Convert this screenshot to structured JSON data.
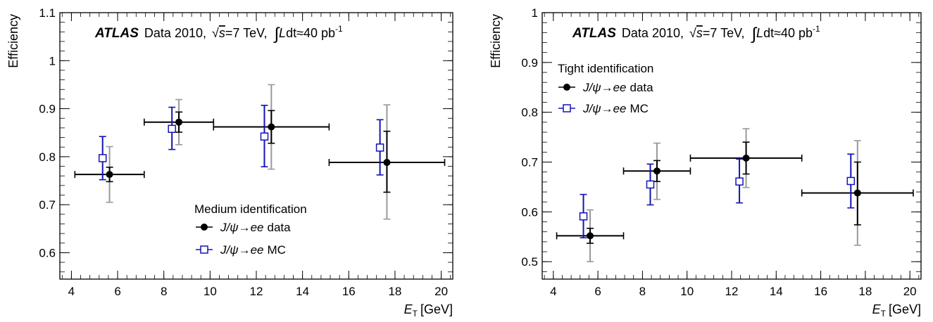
{
  "chart_data": [
    {
      "type": "scatter",
      "panel": "left",
      "header": {
        "experiment": "ATLAS",
        "data_label": "Data 2010,",
        "sqrt_s": "=7 TeV,",
        "luminosity": "dt≈40 pb"
      },
      "ylabel": "Efficiency",
      "xlabel": "[GeV]",
      "xlabel_symbol": "E",
      "xlabel_sub": "T",
      "xlim": [
        3.5,
        20.5
      ],
      "ylim": [
        0.545,
        1.1
      ],
      "xticks": [
        4,
        6,
        8,
        10,
        12,
        14,
        16,
        18,
        20
      ],
      "xtick_labels": [
        "4",
        "6",
        "8",
        "10",
        "12",
        "14",
        "16",
        "18",
        "20"
      ],
      "yticks": [
        0.6,
        0.7,
        0.8,
        0.9,
        1.0,
        1.1
      ],
      "ytick_labels": [
        "0.6",
        "0.7",
        "0.8",
        "0.9",
        "1",
        "1.1"
      ],
      "legend_title": "Medium identification",
      "legend_position": "bottom-right",
      "series": [
        {
          "name": "data",
          "name_prefix": "J/ψ→ee",
          "marker": "filled-circle",
          "color": "#000000",
          "syst_color": "#999999",
          "x": [
            5.65,
            8.65,
            12.65,
            17.65
          ],
          "xerr_low": [
            1.5,
            1.5,
            2.5,
            2.5
          ],
          "xerr_high": [
            1.5,
            1.5,
            2.5,
            2.5
          ],
          "y": [
            0.763,
            0.872,
            0.862,
            0.788
          ],
          "stat_low": [
            0.015,
            0.021,
            0.034,
            0.062
          ],
          "stat_high": [
            0.015,
            0.021,
            0.034,
            0.065
          ],
          "tot_low": [
            0.058,
            0.047,
            0.088,
            0.118
          ],
          "tot_high": [
            0.058,
            0.047,
            0.088,
            0.12
          ]
        },
        {
          "name": "MC",
          "name_prefix": "J/ψ→ee",
          "marker": "open-square",
          "color": "#1414b4",
          "x": [
            5.35,
            8.35,
            12.35,
            17.35
          ],
          "y": [
            0.797,
            0.858,
            0.842,
            0.819
          ],
          "err_low": [
            0.045,
            0.043,
            0.063,
            0.057
          ],
          "err_high": [
            0.045,
            0.045,
            0.065,
            0.058
          ]
        }
      ]
    },
    {
      "type": "scatter",
      "panel": "right",
      "header": {
        "experiment": "ATLAS",
        "data_label": "Data 2010,",
        "sqrt_s": "=7 TeV,",
        "luminosity": "dt≈40 pb"
      },
      "ylabel": "Efficiency",
      "xlabel": "[GeV]",
      "xlabel_symbol": "E",
      "xlabel_sub": "T",
      "xlim": [
        3.5,
        20.5
      ],
      "ylim": [
        0.465,
        1.0
      ],
      "xticks": [
        4,
        6,
        8,
        10,
        12,
        14,
        16,
        18,
        20
      ],
      "xtick_labels": [
        "4",
        "6",
        "8",
        "10",
        "12",
        "14",
        "16",
        "18",
        "20"
      ],
      "yticks": [
        0.5,
        0.6,
        0.7,
        0.8,
        0.9,
        1.0
      ],
      "ytick_labels": [
        "0.5",
        "0.6",
        "0.7",
        "0.8",
        "0.9",
        "1"
      ],
      "legend_title": "Tight identification",
      "legend_position": "top-left",
      "series": [
        {
          "name": "data",
          "name_prefix": "J/ψ→ee",
          "marker": "filled-circle",
          "color": "#000000",
          "syst_color": "#999999",
          "x": [
            5.65,
            8.65,
            12.65,
            17.65
          ],
          "xerr_low": [
            1.5,
            1.5,
            2.5,
            2.5
          ],
          "xerr_high": [
            1.5,
            1.5,
            2.5,
            2.5
          ],
          "y": [
            0.552,
            0.682,
            0.708,
            0.638
          ],
          "stat_low": [
            0.015,
            0.021,
            0.032,
            0.064
          ],
          "stat_high": [
            0.015,
            0.021,
            0.032,
            0.062
          ],
          "tot_low": [
            0.052,
            0.057,
            0.059,
            0.105
          ],
          "tot_high": [
            0.052,
            0.056,
            0.059,
            0.105
          ]
        },
        {
          "name": "MC",
          "name_prefix": "J/ψ→ee",
          "marker": "open-square",
          "color": "#1414b4",
          "x": [
            5.35,
            8.35,
            12.35,
            17.35
          ],
          "y": [
            0.591,
            0.655,
            0.661,
            0.662
          ],
          "err_low": [
            0.043,
            0.041,
            0.043,
            0.054
          ],
          "err_high": [
            0.044,
            0.041,
            0.045,
            0.054
          ]
        }
      ]
    }
  ]
}
